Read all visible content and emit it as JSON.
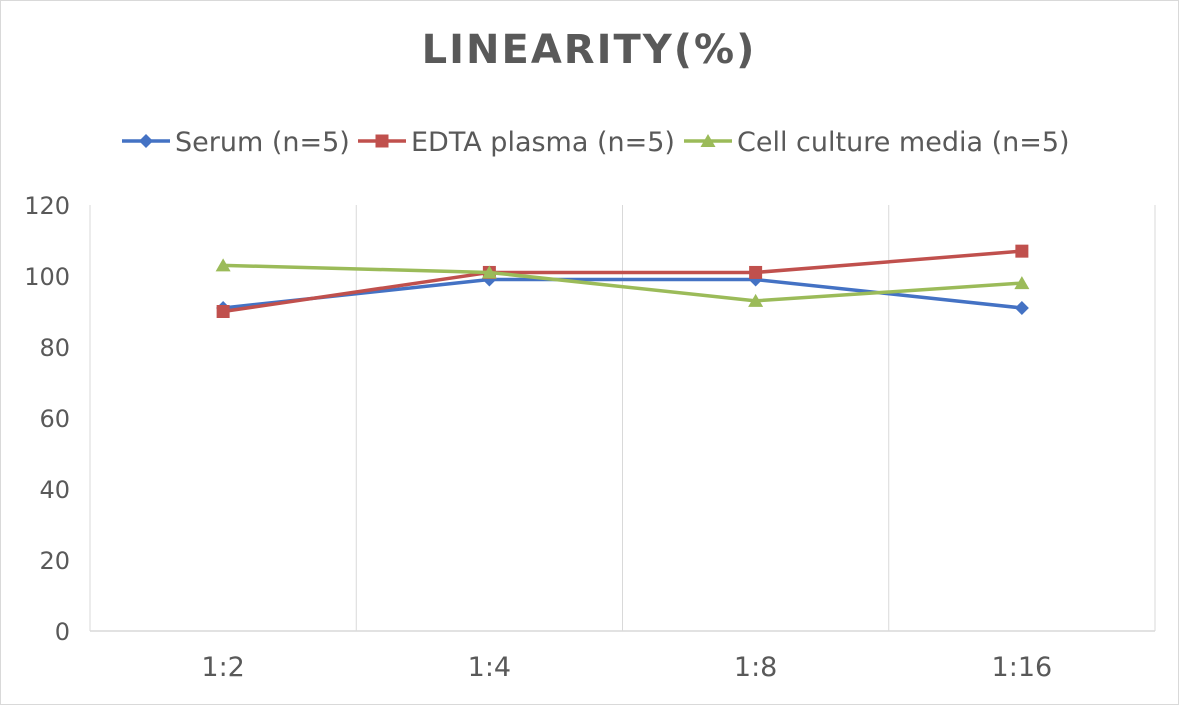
{
  "chart_data": {
    "type": "line",
    "title": "LINEARITY(%)",
    "xlabel": "",
    "ylabel": "",
    "categories": [
      "1:2",
      "1:4",
      "1:8",
      "1:16"
    ],
    "ylim": [
      0,
      120
    ],
    "yticks": [
      0,
      20,
      40,
      60,
      80,
      100,
      120
    ],
    "grid": "vertical",
    "legend": "top",
    "series": [
      {
        "name": "Serum (n=5)",
        "color": "#4472c4",
        "marker": "diamond",
        "values": [
          91,
          99,
          99,
          91
        ]
      },
      {
        "name": "EDTA plasma (n=5)",
        "color": "#c0504d",
        "marker": "square",
        "values": [
          90,
          101,
          101,
          107
        ]
      },
      {
        "name": "Cell culture media (n=5)",
        "color": "#9bbb59",
        "marker": "triangle",
        "values": [
          103,
          101,
          93,
          98
        ]
      }
    ]
  }
}
